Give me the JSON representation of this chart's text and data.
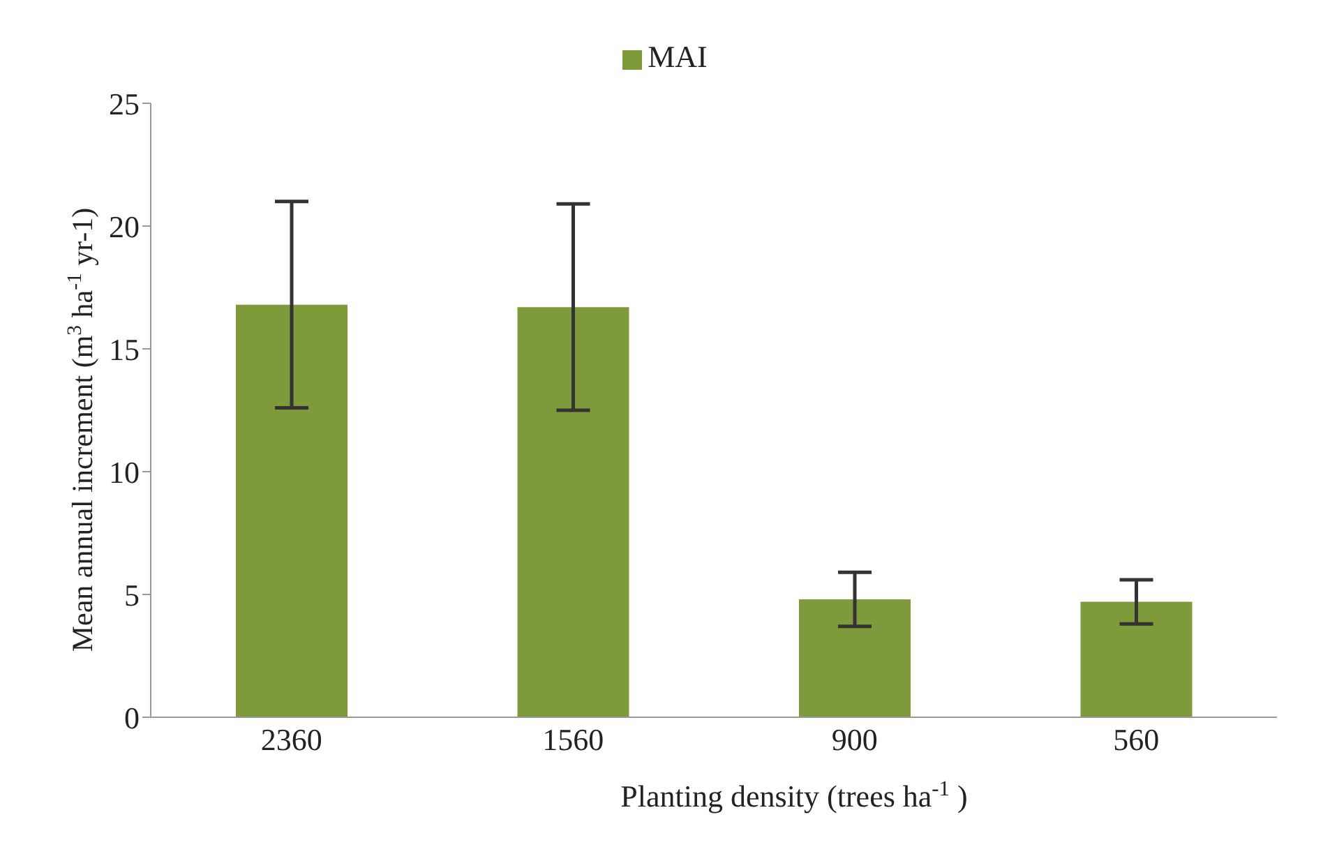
{
  "chart_data": {
    "type": "bar",
    "xlabel": "Planting density (trees ha$^{-1}$)",
    "ylabel": "Mean annual increment (m$^{3}$ha$^{-1}$yr-1)",
    "categories": [
      "2360",
      "1560",
      "900",
      "560"
    ],
    "series": [
      {
        "name": "MAI",
        "color": "#7f9a3a",
        "values": [
          16.8,
          16.7,
          4.8,
          4.7
        ],
        "errors": [
          4.2,
          4.2,
          1.1,
          0.9
        ]
      }
    ],
    "ylim": [
      0,
      25
    ],
    "yticks": [
      0,
      5,
      10,
      15,
      20,
      25
    ],
    "grid": false,
    "legend": "top"
  }
}
